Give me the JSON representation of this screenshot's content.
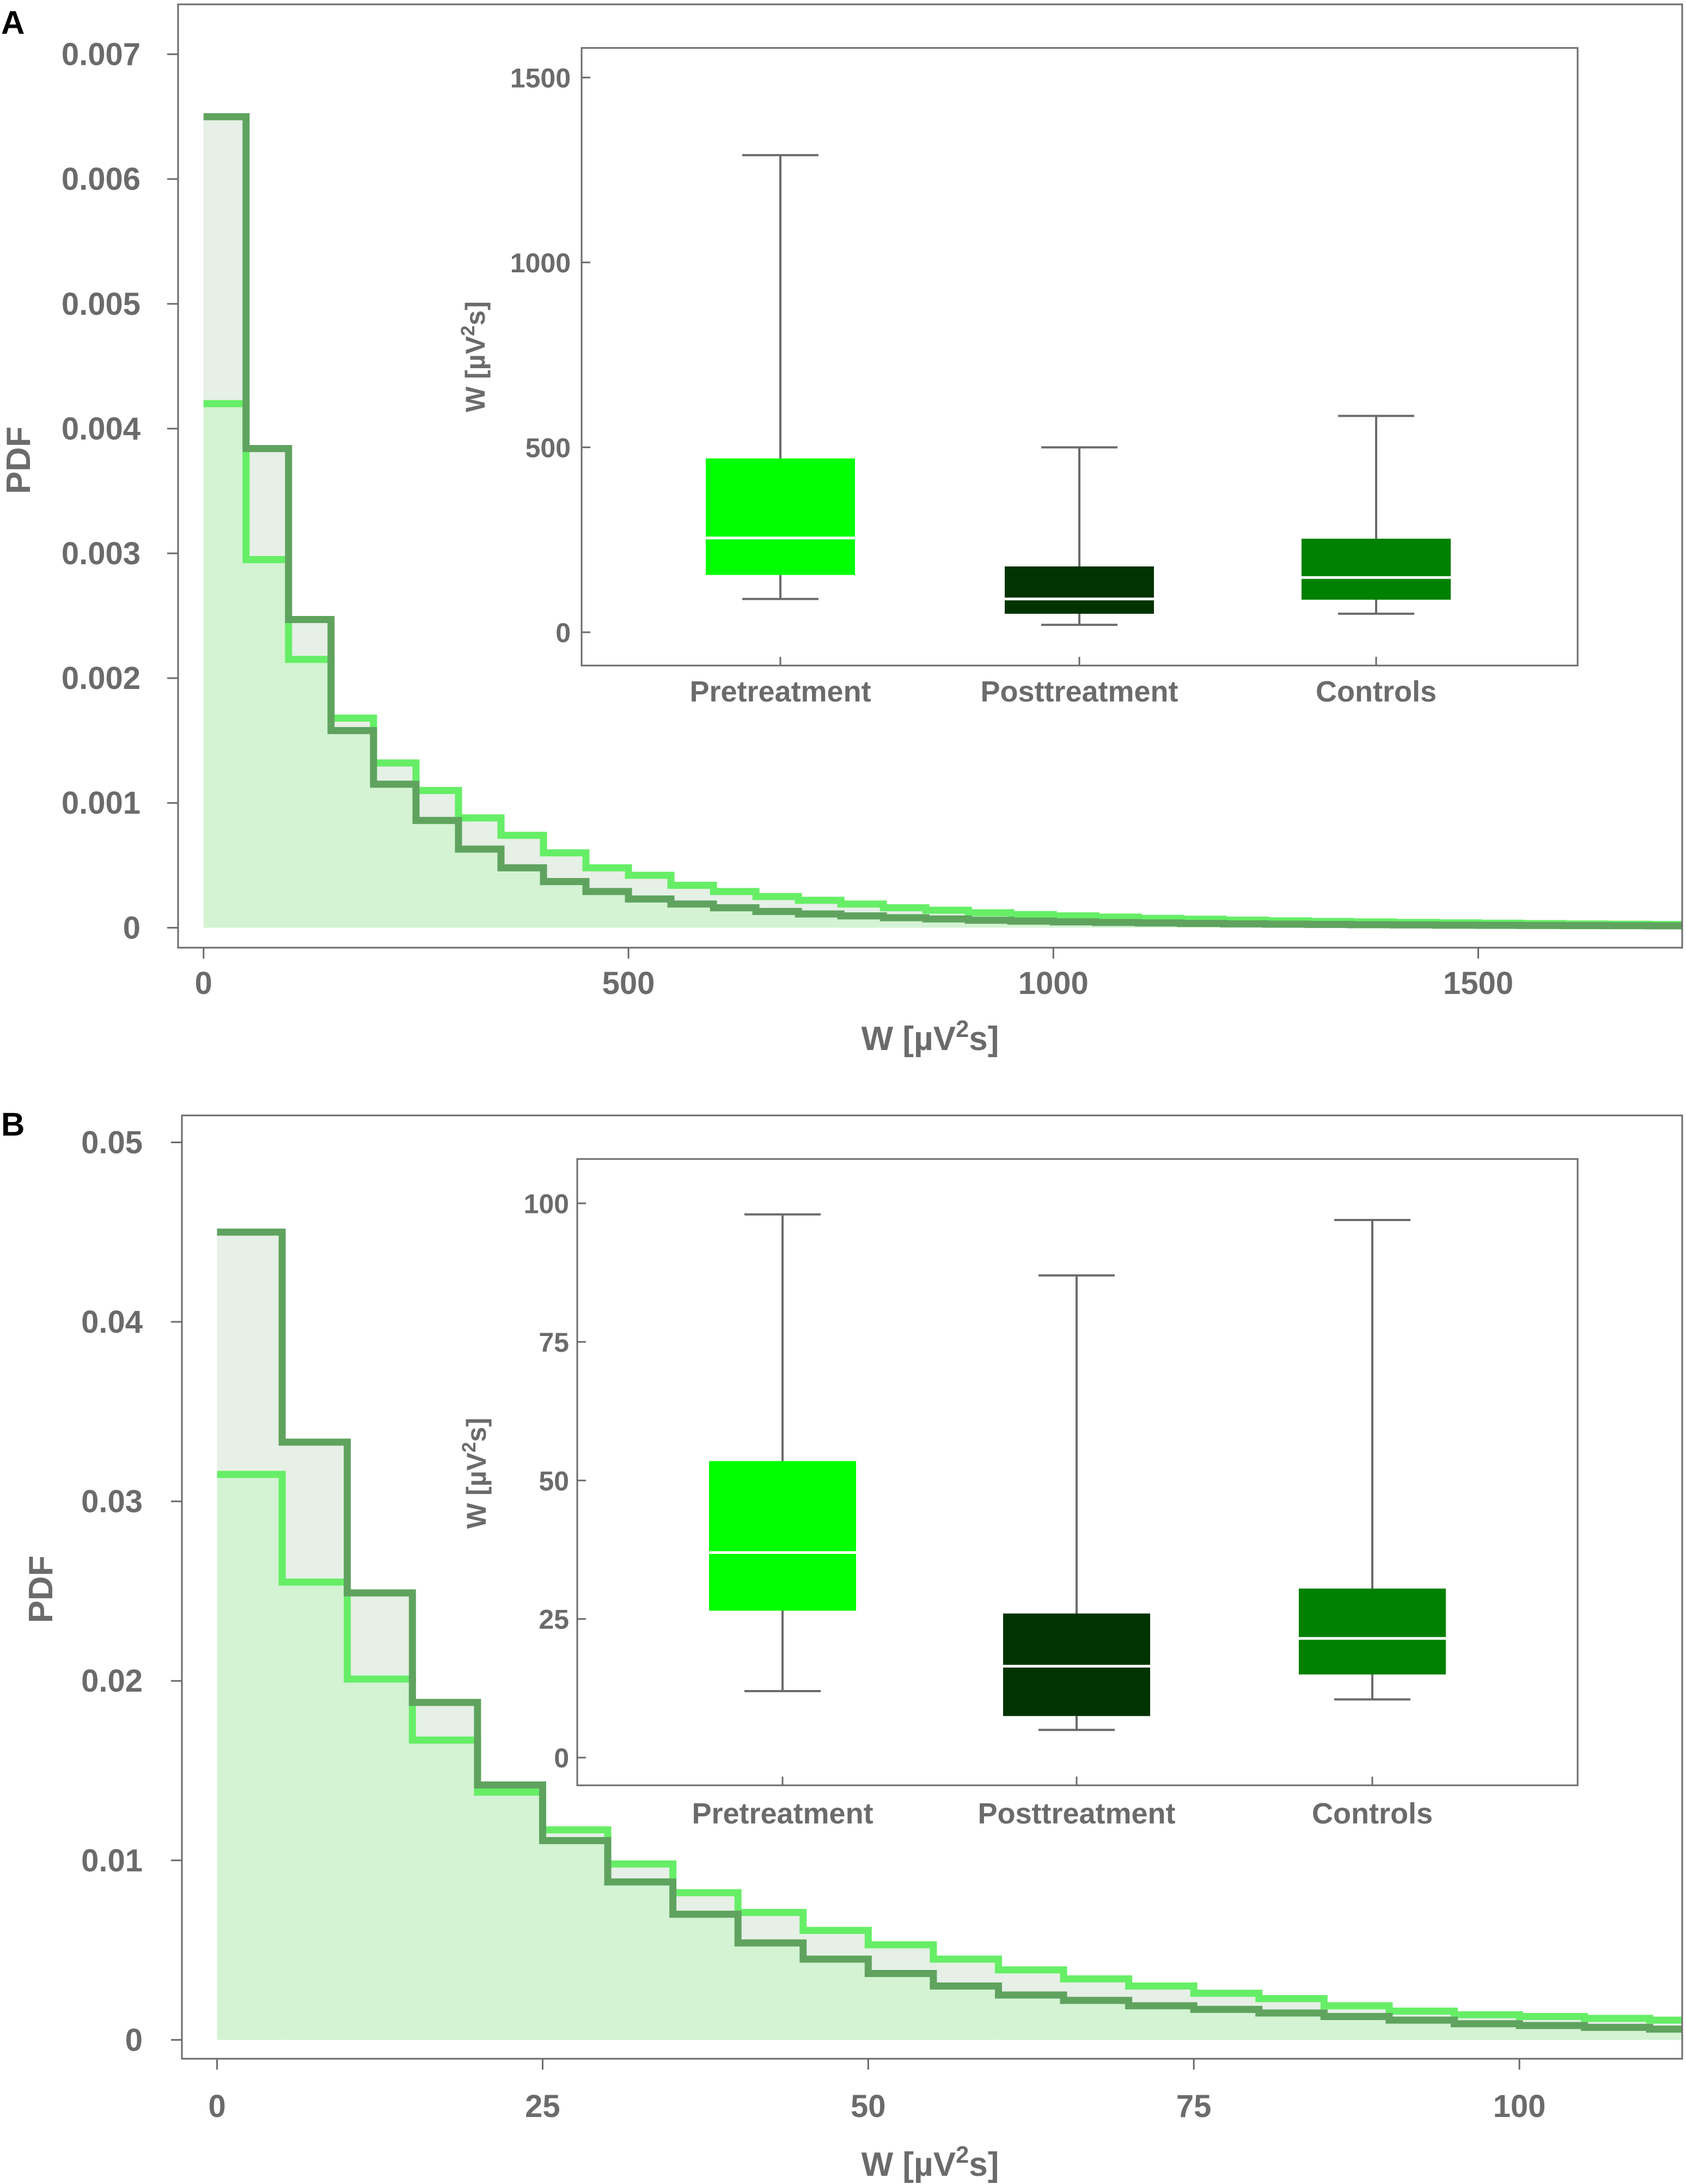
{
  "colors": {
    "axis": "#6b6b6b",
    "fill_light": "#d3f3d3",
    "fill_grey": "#e6f0e6",
    "pre_line": "#66ee66",
    "post_line": "#5fa35f",
    "overlap_line": "#33dd33",
    "box_pre": "#00ff00",
    "box_post": "#003300",
    "box_controls": "#008000",
    "median": "#ffffff",
    "whisker": "#6b6b6b"
  },
  "chart_data": [
    {
      "panel": "A",
      "type": "histogram",
      "xlabel": "W [µV²s]",
      "ylabel": "PDF",
      "xlim": [
        -30,
        1740
      ],
      "ylim": [
        -0.00016,
        0.0074
      ],
      "xticks": [
        0,
        500,
        1000,
        1500
      ],
      "xtick_labels": [
        "0",
        "500",
        "1000",
        "1500"
      ],
      "yticks": [
        0,
        0.001,
        0.002,
        0.003,
        0.004,
        0.005,
        0.006,
        0.007
      ],
      "ytick_labels": [
        "0",
        "0.001",
        "0.002",
        "0.003",
        "0.004",
        "0.005",
        "0.006",
        "0.007"
      ],
      "bin_width": 50,
      "series": [
        {
          "name": "Pretreatment",
          "values": [
            0.0042,
            0.00295,
            0.00215,
            0.00168,
            0.00132,
            0.0011,
            0.00088,
            0.00074,
            0.0006,
            0.00048,
            0.00042,
            0.00034,
            0.00029,
            0.00025,
            0.00022,
            0.00019,
            0.00016,
            0.00014,
            0.00012,
            0.000105,
            9.5e-05,
            8.5e-05,
            7.5e-05,
            6.8e-05,
            6.1e-05,
            5.5e-05,
            5e-05,
            4.6e-05,
            4.2e-05,
            3.9e-05,
            3.6e-05,
            3.3e-05,
            3e-05,
            2.8e-05,
            2.6e-05
          ]
        },
        {
          "name": "Posttreatment",
          "values": [
            0.0065,
            0.00384,
            0.00247,
            0.00158,
            0.00115,
            0.00086,
            0.00063,
            0.00048,
            0.00037,
            0.00029,
            0.00023,
            0.00019,
            0.00016,
            0.00013,
            0.00011,
            9.5e-05,
            8e-05,
            7e-05,
            6e-05,
            5.3e-05,
            4.7e-05,
            4.2e-05,
            3.8e-05,
            3.4e-05,
            3.1e-05,
            2.8e-05,
            2.6e-05,
            2.4e-05,
            2.2e-05,
            2e-05,
            1.9e-05,
            1.8e-05,
            1.7e-05,
            1.6e-05,
            1.5e-05
          ]
        }
      ],
      "inset": {
        "type": "box",
        "ylabel": "W [µV²s]",
        "ylim": [
          -90,
          1580
        ],
        "yticks": [
          0,
          500,
          1000,
          1500
        ],
        "ytick_labels": [
          "0",
          "500",
          "1000",
          "1500"
        ],
        "categories": [
          "Pretreatment",
          "Posttreatment",
          "Controls"
        ],
        "boxes": [
          {
            "min": 90,
            "q1": 155,
            "median": 255,
            "q3": 470,
            "max": 1290
          },
          {
            "min": 20,
            "q1": 50,
            "median": 90,
            "q3": 178,
            "max": 500
          },
          {
            "min": 50,
            "q1": 88,
            "median": 148,
            "q3": 253,
            "max": 585
          }
        ]
      }
    },
    {
      "panel": "B",
      "type": "histogram",
      "xlabel": "W [µV²s]",
      "ylabel": "PDF",
      "xlim": [
        -2.7,
        112.5
      ],
      "ylim": [
        -0.00105,
        0.0515
      ],
      "xticks": [
        0,
        25,
        50,
        75,
        100
      ],
      "xtick_labels": [
        "0",
        "25",
        "50",
        "75",
        "100"
      ],
      "yticks": [
        0,
        0.01,
        0.02,
        0.03,
        0.04,
        0.05
      ],
      "ytick_labels": [
        "0",
        "0.01",
        "0.02",
        "0.03",
        "0.04",
        "0.05"
      ],
      "bin_width": 5,
      "series": [
        {
          "name": "Pretreatment",
          "values": [
            0.0315,
            0.0255,
            0.0201,
            0.0167,
            0.0138,
            0.0117,
            0.0098,
            0.0082,
            0.0071,
            0.0061,
            0.0053,
            0.0045,
            0.0039,
            0.0034,
            0.003,
            0.0026,
            0.0023,
            0.0019,
            0.0016,
            0.0014,
            0.0013,
            0.0012,
            0.0011
          ]
        },
        {
          "name": "Posttreatment",
          "values": [
            0.045,
            0.0333,
            0.0249,
            0.0188,
            0.0142,
            0.0111,
            0.0088,
            0.007,
            0.0054,
            0.0045,
            0.0037,
            0.003,
            0.0025,
            0.0022,
            0.0019,
            0.0017,
            0.0015,
            0.0013,
            0.0011,
            0.0009,
            0.0008,
            0.0007,
            0.0006
          ]
        }
      ],
      "inset": {
        "type": "box",
        "ylabel": "W [µV²s]",
        "ylim": [
          -5,
          108
        ],
        "yticks": [
          0,
          25,
          50,
          75,
          100
        ],
        "ytick_labels": [
          "0",
          "25",
          "50",
          "75",
          "100"
        ],
        "categories": [
          "Pretreatment",
          "Posttreatment",
          "Controls"
        ],
        "boxes": [
          {
            "min": 12,
            "q1": 26.5,
            "median": 37,
            "q3": 53.5,
            "max": 98
          },
          {
            "min": 5,
            "q1": 7.5,
            "median": 16.5,
            "q3": 26,
            "max": 87
          },
          {
            "min": 10.5,
            "q1": 15,
            "median": 21.5,
            "q3": 30.5,
            "max": 97
          }
        ]
      }
    }
  ]
}
